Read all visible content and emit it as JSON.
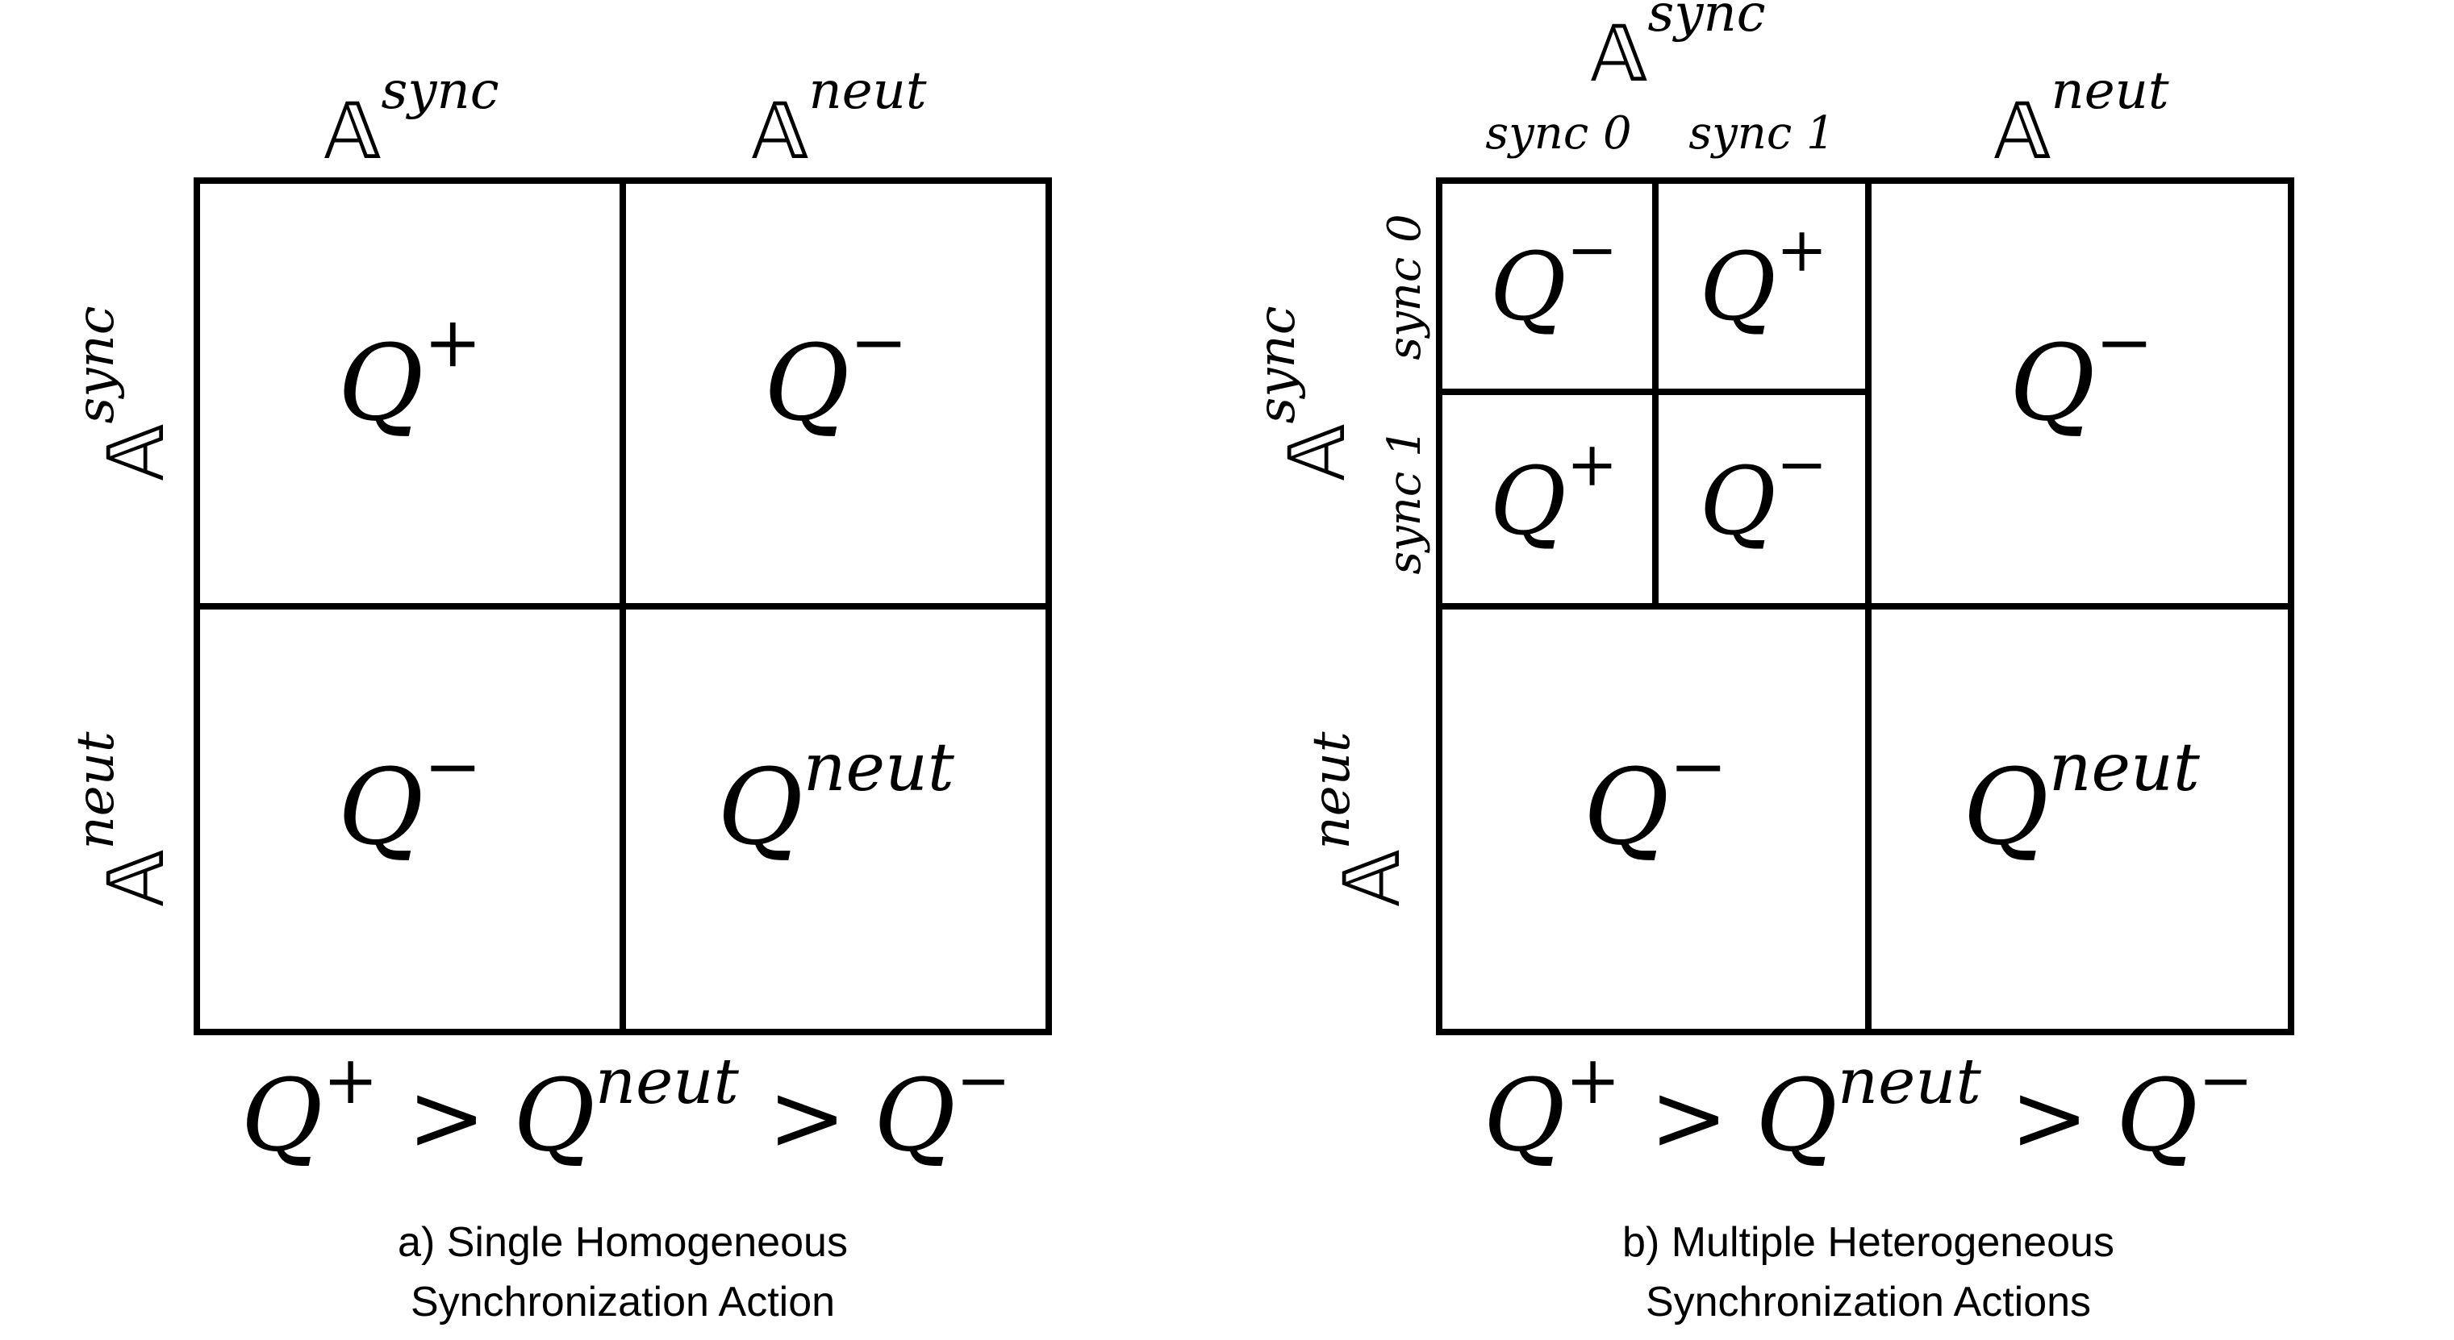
{
  "panel_a": {
    "col_labels": [
      {
        "base": "𝔸",
        "sup": "sync"
      },
      {
        "base": "𝔸",
        "sup": "neut"
      }
    ],
    "row_labels": [
      {
        "base": "𝔸",
        "sup": "sync"
      },
      {
        "base": "𝔸",
        "sup": "neut"
      }
    ],
    "cells": [
      {
        "base": "Q",
        "sup": "+"
      },
      {
        "base": "Q",
        "sup": "−"
      },
      {
        "base": "Q",
        "sup": "−"
      },
      {
        "base": "Q",
        "sup": "neut"
      }
    ],
    "ordering": {
      "q1": "Q",
      "s1": "+",
      "op1": ">",
      "q2": "Q",
      "s2": "neut",
      "op2": ">",
      "q3": "Q",
      "s3": "−"
    },
    "caption_line1": "a) Single Homogeneous",
    "caption_line2": "Synchronization Action"
  },
  "panel_b": {
    "col_labels": [
      {
        "base": "𝔸",
        "sup": "sync"
      },
      {
        "base": "𝔸",
        "sup": "neut"
      }
    ],
    "sub_col_labels": [
      "sync 0",
      "sync 1"
    ],
    "row_labels": [
      {
        "base": "𝔸",
        "sup": "sync"
      },
      {
        "base": "𝔸",
        "sup": "neut"
      }
    ],
    "sub_row_labels": [
      "sync 0",
      "sync 1"
    ],
    "sub_cells": [
      {
        "base": "Q",
        "sup": "−"
      },
      {
        "base": "Q",
        "sup": "+"
      },
      {
        "base": "Q",
        "sup": "+"
      },
      {
        "base": "Q",
        "sup": "−"
      }
    ],
    "cells": [
      {
        "base": "Q",
        "sup": "−"
      },
      {
        "base": "Q",
        "sup": "−"
      },
      {
        "base": "Q",
        "sup": "neut"
      }
    ],
    "ordering": {
      "q1": "Q",
      "s1": "+",
      "op1": ">",
      "q2": "Q",
      "s2": "neut",
      "op2": ">",
      "q3": "Q",
      "s3": "−"
    },
    "caption_line1": "b) Multiple Heterogeneous",
    "caption_line2": "Synchronization Actions"
  }
}
